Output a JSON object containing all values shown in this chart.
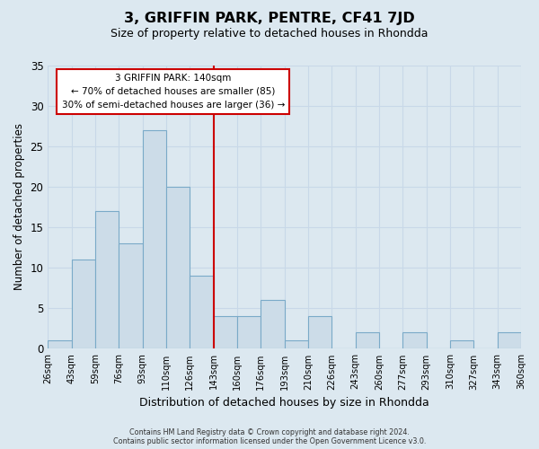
{
  "title": "3, GRIFFIN PARK, PENTRE, CF41 7JD",
  "subtitle": "Size of property relative to detached houses in Rhondda",
  "xlabel": "Distribution of detached houses by size in Rhondda",
  "ylabel": "Number of detached properties",
  "footer_line1": "Contains HM Land Registry data © Crown copyright and database right 2024.",
  "footer_line2": "Contains public sector information licensed under the Open Government Licence v3.0.",
  "tick_labels": [
    "26sqm",
    "43sqm",
    "59sqm",
    "76sqm",
    "93sqm",
    "110sqm",
    "126sqm",
    "143sqm",
    "160sqm",
    "176sqm",
    "193sqm",
    "210sqm",
    "226sqm",
    "243sqm",
    "260sqm",
    "277sqm",
    "293sqm",
    "310sqm",
    "327sqm",
    "343sqm",
    "360sqm"
  ],
  "bar_values": [
    1,
    11,
    17,
    13,
    27,
    20,
    9,
    4,
    4,
    6,
    1,
    4,
    0,
    2,
    0,
    2,
    0,
    1,
    0,
    2
  ],
  "bar_color": "#ccdce8",
  "bar_edge_color": "#7aaac8",
  "vline_position": 7,
  "vline_color": "#cc0000",
  "ylim": [
    0,
    35
  ],
  "yticks": [
    0,
    5,
    10,
    15,
    20,
    25,
    30,
    35
  ],
  "annotation_line1": "3 GRIFFIN PARK: 140sqm",
  "annotation_line2": "← 70% of detached houses are smaller (85)",
  "annotation_line3": "30% of semi-detached houses are larger (36) →",
  "annotation_box_edge": "#cc0000",
  "annotation_box_face": "#ffffff",
  "grid_color": "#c8d8e8",
  "background_color": "#dce8f0"
}
